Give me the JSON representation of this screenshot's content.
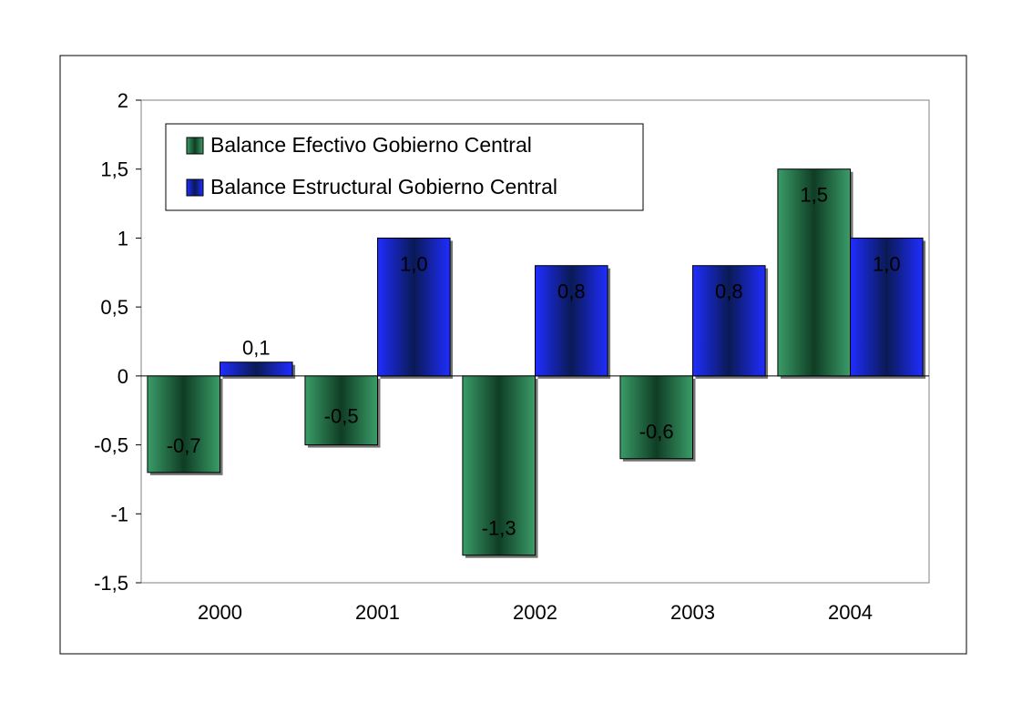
{
  "chart_data": {
    "type": "bar",
    "title": "",
    "xlabel": "",
    "ylabel": "",
    "categories": [
      "2000",
      "2001",
      "2002",
      "2003",
      "2004"
    ],
    "series": [
      {
        "name": "Balance Efectivo Gobierno Central",
        "values": [
          -0.7,
          -0.5,
          -1.3,
          -0.6,
          1.5
        ],
        "labels": [
          "-0,7",
          "-0,5",
          "-1,3",
          "-0,6",
          "1,5"
        ],
        "color": "#2e8b57"
      },
      {
        "name": "Balance Estructural Gobierno Central",
        "values": [
          0.1,
          1.0,
          0.8,
          0.8,
          1.0
        ],
        "labels": [
          "0,1",
          "1,0",
          "0,8",
          "0,8",
          "1,0"
        ],
        "color": "#1a1aff"
      }
    ],
    "ylim": [
      -1.5,
      2
    ],
    "yticks": [
      2,
      1.5,
      1,
      0.5,
      0,
      -0.5,
      -1,
      -1.5
    ],
    "ytick_labels": [
      "2",
      "1,5",
      "1",
      "0,5",
      "0",
      "-0,5",
      "-1",
      "-1,5"
    ],
    "grid": false,
    "legend_position": "top-left"
  }
}
